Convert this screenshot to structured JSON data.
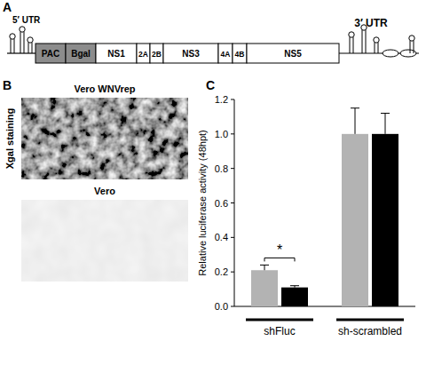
{
  "panel_labels": [
    "A",
    "B",
    "C"
  ],
  "diagram": {
    "utr5": "5′ UTR",
    "utr3": "3′ UTR",
    "genes": [
      {
        "label": "PAC",
        "color": "#8c8c8c"
      },
      {
        "label": "Bgal",
        "color": "#8c8c8c"
      },
      {
        "label": "NS1",
        "color": "#ffffff"
      },
      {
        "label": "2A",
        "color": "#ffffff"
      },
      {
        "label": "2B",
        "color": "#ffffff"
      },
      {
        "label": "NS3",
        "color": "#ffffff"
      },
      {
        "label": "4A",
        "color": "#ffffff"
      },
      {
        "label": "4B",
        "color": "#ffffff"
      },
      {
        "label": "NS5",
        "color": "#ffffff"
      }
    ]
  },
  "images": {
    "row_label": "Xgal staining",
    "panels": [
      {
        "title": "Vero WNVrep"
      },
      {
        "title": "Vero"
      }
    ]
  },
  "chart_data": {
    "type": "bar",
    "categories": [
      "shFluc",
      "sh-scrambled"
    ],
    "series": [
      {
        "color": "#b3b3b3",
        "values": [
          0.21,
          1.0
        ],
        "errors": [
          0.03,
          0.15
        ]
      },
      {
        "color": "#000000",
        "values": [
          0.11,
          1.0
        ],
        "errors": [
          0.01,
          0.12
        ]
      }
    ],
    "y_label": "Relative luciferase activity (48hpt)",
    "ylim": [
      0,
      1.2
    ],
    "yticks": [
      {
        "value": 0,
        "label": "0.0"
      },
      {
        "value": 0.2,
        "label": "0.2"
      },
      {
        "value": 0.4,
        "label": "0.4"
      },
      {
        "value": 0.6,
        "label": "0.6"
      },
      {
        "value": 0.8,
        "label": "0.8"
      },
      {
        "value": 1,
        "label": "1.0"
      },
      {
        "value": 1.2,
        "label": "1.2"
      }
    ],
    "grid": false,
    "annotations": [
      "*"
    ]
  }
}
